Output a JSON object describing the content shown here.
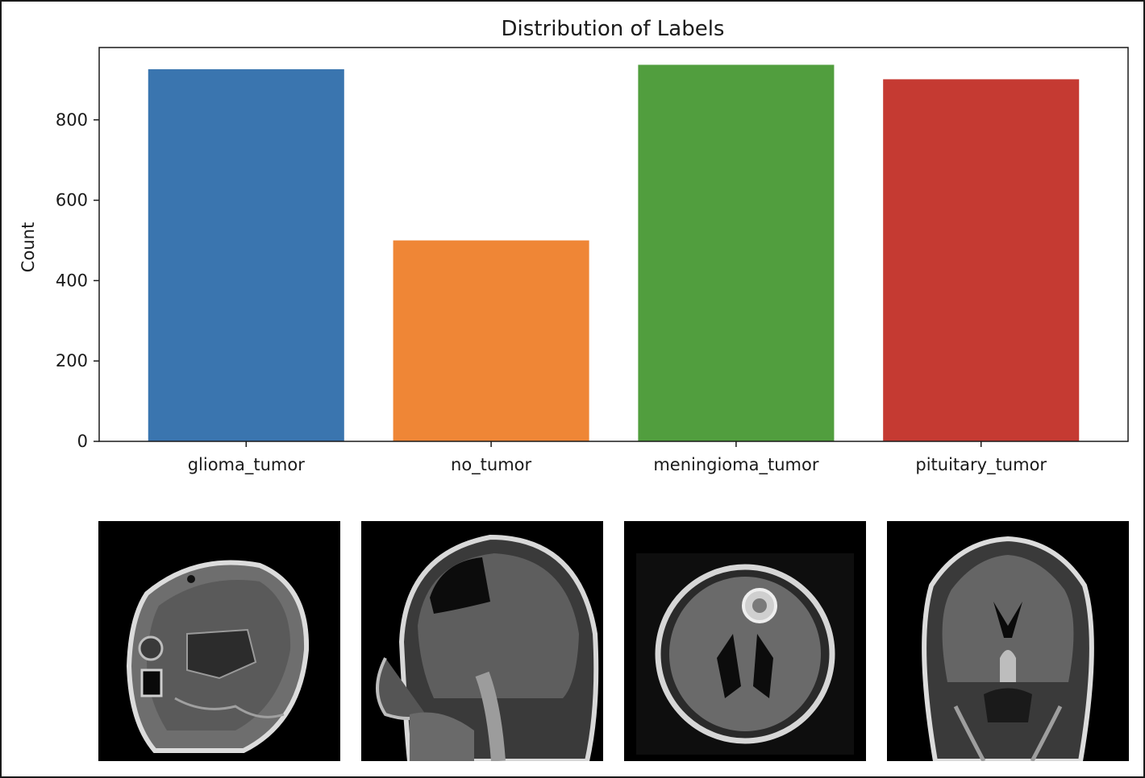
{
  "chart_data": {
    "type": "bar",
    "title": "Distribution of Labels",
    "xlabel": "",
    "ylabel": "Count",
    "categories": [
      "glioma_tumor",
      "no_tumor",
      "meningioma_tumor",
      "pituitary_tumor"
    ],
    "values": [
      926,
      500,
      937,
      901
    ],
    "colors": [
      "#3a75af",
      "#ef8636",
      "#519e3e",
      "#c53a32"
    ],
    "ylim": [
      0,
      980
    ],
    "yticks": [
      0,
      200,
      400,
      600,
      800
    ],
    "grid": false,
    "legend": "none"
  },
  "images": [
    {
      "category": "glioma_tumor",
      "view": "sagittal"
    },
    {
      "category": "no_tumor",
      "view": "sagittal"
    },
    {
      "category": "meningioma_tumor",
      "view": "axial"
    },
    {
      "category": "pituitary_tumor",
      "view": "coronal"
    }
  ]
}
